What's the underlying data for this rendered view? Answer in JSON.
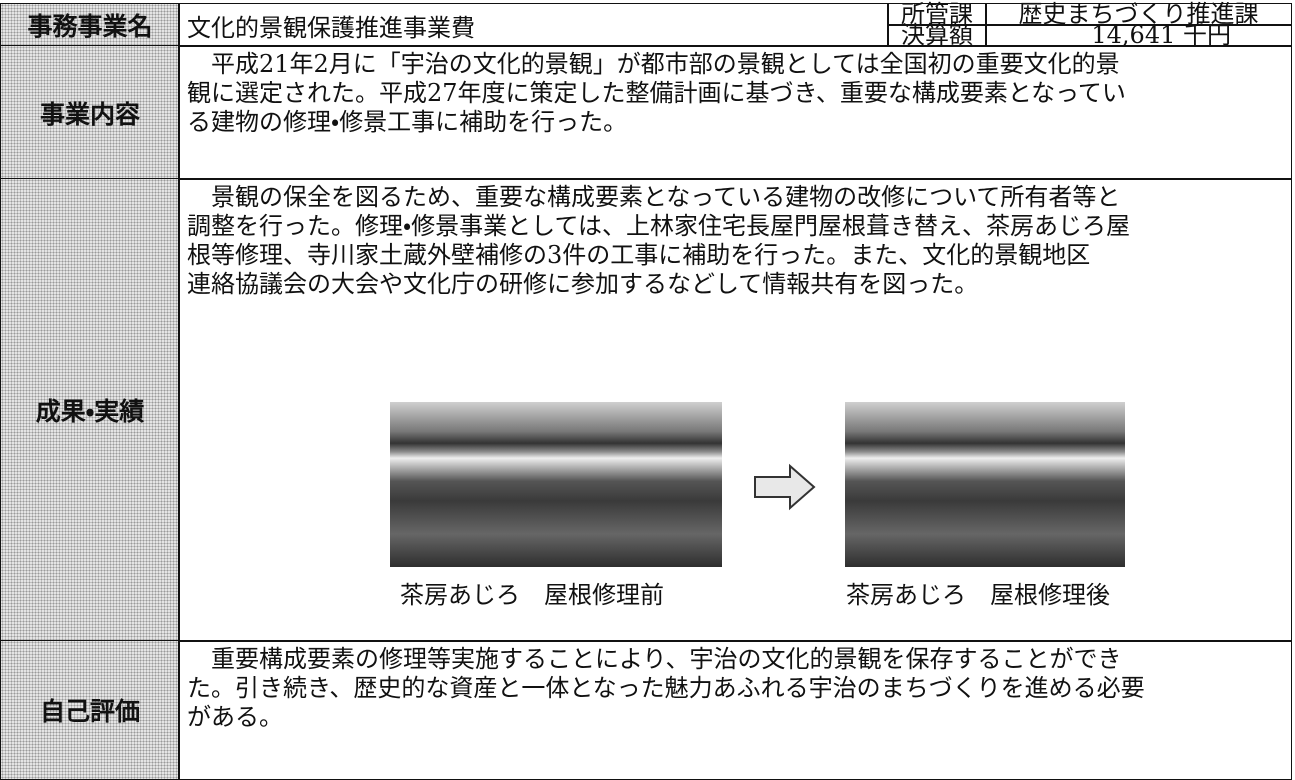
{
  "header": {
    "name_label": "事務事業名",
    "name": "文化的景観保護推進事業費",
    "dept_label": "所管課",
    "dept": "歴史まちづくり推進課",
    "amount_label": "決算額",
    "amount": "14,641 千円"
  },
  "sections": [
    {
      "label": "事業内容",
      "lines": [
        "平成21年2月に「宇治の文化的景観」が都市部の景観としては全国初の重要文化的景",
        "観に選定された。平成27年度に策定した整備計画に基づき、重要な構成要素となってい",
        "る建物の修理・修景工事に補助を行った。"
      ]
    },
    {
      "label": "成果・実績",
      "lines": [
        "景観の保全を図るため、重要な構成要素となっている建物の改修について所有者等と",
        "調整を行った。修理・修景事業としては、上林家住宅長屋門屋根葺き替え、茶房あじろ屋",
        "根等修理、寺川家土蔵外壁補修の3件の工事に補助を行った。また、文化的景観地区",
        "連絡協議会の大会や文化庁の研修に参加するなどして情報共有を図った。"
      ],
      "photos": [
        {
          "caption": "茶房あじろ　屋根修理前"
        },
        {
          "caption": "茶房あじろ　屋根修理後"
        }
      ]
    },
    {
      "label": "自己評価",
      "lines": [
        "重要構成要素の修理等実施することにより、宇治の文化的景観を保存することができ",
        "た。引き続き、歴史的な資産と一体となった魅力あふれる宇治のまちづくりを進める必要",
        "がある。"
      ]
    }
  ]
}
